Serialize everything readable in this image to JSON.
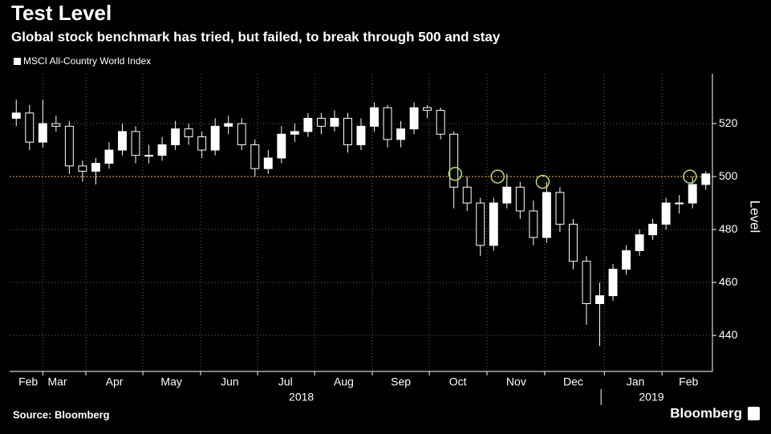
{
  "chart_data": {
    "type": "candlestick",
    "title": "Test Level",
    "subtitle": "Global stock benchmark has tried, but failed, to break through 500 and stay",
    "series": [
      {
        "name": "MSCI All-Country World Index",
        "color": "#ffffff",
        "open": [
          522,
          524,
          513,
          520,
          519,
          504,
          502,
          505,
          510,
          517,
          508,
          508,
          512,
          518,
          515,
          510,
          519,
          520,
          512,
          503,
          507,
          516,
          517,
          522,
          519,
          522,
          512,
          519,
          526,
          514,
          518,
          526,
          525,
          516,
          496,
          490,
          474,
          490,
          496,
          487,
          477,
          494,
          482,
          468,
          452,
          455,
          465,
          472,
          478,
          482,
          490,
          490,
          497
        ],
        "high": [
          529,
          527,
          529,
          523,
          521,
          506,
          507,
          513,
          520,
          519,
          512,
          515,
          521,
          520,
          517,
          522,
          523,
          522,
          514,
          510,
          519,
          520,
          524,
          524,
          525,
          524,
          522,
          528,
          527,
          521,
          528,
          527,
          526,
          517,
          500,
          492,
          492,
          501,
          498,
          491,
          498,
          496,
          484,
          470,
          460,
          467,
          474,
          480,
          484,
          492,
          493,
          500,
          502
        ],
        "low": [
          519,
          510,
          511,
          517,
          501,
          498,
          497,
          503,
          508,
          505,
          505,
          506,
          510,
          512,
          507,
          508,
          516,
          510,
          500,
          501,
          505,
          513,
          515,
          516,
          517,
          509,
          510,
          517,
          511,
          511,
          516,
          522,
          514,
          488,
          487,
          470,
          472,
          488,
          484,
          474,
          475,
          479,
          465,
          444,
          436,
          453,
          463,
          470,
          476,
          480,
          486,
          488,
          495
        ],
        "close": [
          524,
          513,
          520,
          519,
          504,
          502,
          505,
          510,
          517,
          508,
          508,
          512,
          518,
          515,
          510,
          519,
          520,
          512,
          503,
          507,
          516,
          517,
          522,
          519,
          522,
          512,
          519,
          526,
          514,
          518,
          526,
          525,
          516,
          496,
          490,
          474,
          490,
          496,
          487,
          477,
          494,
          482,
          468,
          452,
          455,
          465,
          472,
          478,
          482,
          490,
          490,
          497,
          501
        ]
      }
    ],
    "xlim": [
      0,
      53
    ],
    "xticks": [
      {
        "value": 1.4,
        "label": "Feb"
      },
      {
        "value": 3.6,
        "label": "Mar"
      },
      {
        "value": 7.9,
        "label": "Apr"
      },
      {
        "value": 12.2,
        "label": "May"
      },
      {
        "value": 16.6,
        "label": "Jun"
      },
      {
        "value": 20.8,
        "label": "Jul"
      },
      {
        "value": 25.2,
        "label": "Aug"
      },
      {
        "value": 29.5,
        "label": "Sep"
      },
      {
        "value": 33.8,
        "label": "Oct"
      },
      {
        "value": 38.2,
        "label": "Nov"
      },
      {
        "value": 42.5,
        "label": "Dec"
      },
      {
        "value": 47.2,
        "label": "Jan"
      },
      {
        "value": 51.2,
        "label": "Feb"
      }
    ],
    "year_labels": [
      {
        "value": 22,
        "label": "2018"
      },
      {
        "value": 48.4,
        "label": "2019"
      }
    ],
    "year_divider": 44.6,
    "ylim": [
      426.4,
      538.8
    ],
    "yticks": [
      440,
      460,
      480,
      500,
      520
    ],
    "y_label": "Level",
    "reference_line": {
      "value": 500,
      "color": "#f0a030"
    },
    "highlights": [
      {
        "x": 33.6,
        "y": 501
      },
      {
        "x": 36.8,
        "y": 500
      },
      {
        "x": 40.2,
        "y": 498
      },
      {
        "x": 51.3,
        "y": 500
      }
    ],
    "highlight_color": "#b5e06a",
    "grid": true,
    "source": "Source: Bloomberg",
    "brand": "Bloomberg"
  }
}
